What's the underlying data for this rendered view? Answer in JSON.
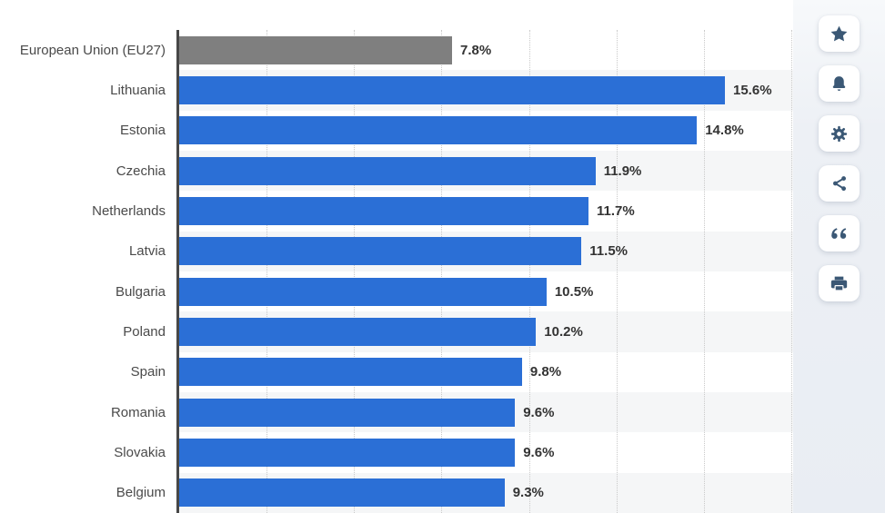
{
  "chart_data": {
    "type": "bar",
    "orientation": "horizontal",
    "title": "",
    "xlabel": "",
    "ylabel": "",
    "xlim": [
      0,
      17.55
    ],
    "gridline_step_percent": 2.5,
    "grid": "vertical-dotted",
    "legend": "none",
    "categories": [
      "European Union (EU27)",
      "Lithuania",
      "Estonia",
      "Czechia",
      "Netherlands",
      "Latvia",
      "Bulgaria",
      "Poland",
      "Spain",
      "Romania",
      "Slovakia",
      "Belgium"
    ],
    "values": [
      7.8,
      15.6,
      14.8,
      11.9,
      11.7,
      11.5,
      10.5,
      10.2,
      9.8,
      9.6,
      9.6,
      9.3
    ],
    "value_labels": [
      "7.8%",
      "15.6%",
      "14.8%",
      "11.9%",
      "11.7%",
      "11.5%",
      "10.5%",
      "10.2%",
      "9.8%",
      "9.6%",
      "9.6%",
      "9.3%"
    ],
    "highlighted_category": "European Union (EU27)",
    "colors": {
      "bar": "#2b6fd6",
      "highlight_bar": "#7f7f7f",
      "axis_line": "#474747",
      "gridline": "#c9c9c9",
      "row_stripe": "#f5f6f7",
      "category_text": "#4a4a4a",
      "value_text": "#333333"
    }
  },
  "toolbar": {
    "background": "#edf0f5",
    "icon_color": "#3b5875",
    "buttons": [
      {
        "name": "favorite-button",
        "icon": "star-icon"
      },
      {
        "name": "notifications-button",
        "icon": "bell-icon"
      },
      {
        "name": "settings-button",
        "icon": "gear-icon"
      },
      {
        "name": "share-button",
        "icon": "share-icon"
      },
      {
        "name": "citation-button",
        "icon": "quote-icon"
      },
      {
        "name": "print-button",
        "icon": "printer-icon"
      }
    ]
  }
}
